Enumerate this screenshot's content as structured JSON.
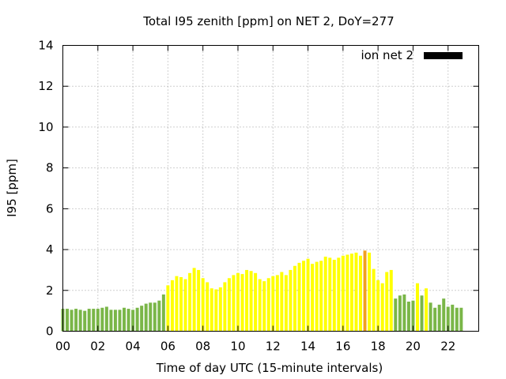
{
  "chart_data": {
    "type": "bar",
    "title": "Total I95 zenith [ppm] on NET 2, DoY=277",
    "xlabel": "Time of day UTC (15-minute intervals)",
    "ylabel": "I95 [ppm]",
    "ylim": [
      0,
      14
    ],
    "xlim": [
      0,
      23.75
    ],
    "yticks": [
      "0",
      "2",
      "4",
      "6",
      "8",
      "10",
      "12",
      "14"
    ],
    "xticks": [
      "00",
      "02",
      "04",
      "06",
      "08",
      "10",
      "12",
      "14",
      "16",
      "18",
      "20",
      "22"
    ],
    "grid": true,
    "legend": {
      "position": "top-right",
      "label": "ion net 2",
      "color": "#000000"
    },
    "bar_width_hours": 0.18,
    "colors": {
      "low": "#7ab648",
      "medium": "#ffff00",
      "high": "#f0a020"
    },
    "series": [
      {
        "x": [
          0,
          0.25,
          0.5,
          0.75,
          1,
          1.25,
          1.5,
          1.75,
          2,
          2.25,
          2.5,
          2.75,
          3,
          3.25,
          3.5,
          3.75,
          4,
          4.25,
          4.5,
          4.75,
          5,
          5.25,
          5.5,
          5.75,
          6,
          6.25,
          6.5,
          6.75,
          7,
          7.25,
          7.5,
          7.75,
          8,
          8.25,
          8.5,
          8.75,
          9,
          9.25,
          9.5,
          9.75,
          10,
          10.25,
          10.5,
          10.75,
          11,
          11.25,
          11.5,
          11.75,
          12,
          12.25,
          12.5,
          12.75,
          13,
          13.25,
          13.5,
          13.75,
          14,
          14.25,
          14.5,
          14.75,
          15,
          15.25,
          15.5,
          15.75,
          16,
          16.25,
          16.5,
          16.75,
          17,
          17.25,
          17.5,
          17.75,
          18,
          18.25,
          18.5,
          18.75,
          19,
          19.25,
          19.5,
          19.75,
          20,
          20.25,
          20.5,
          20.75,
          21,
          21.25,
          21.5,
          21.75,
          22,
          22.25,
          22.5,
          22.75
        ],
        "values": [
          1.1,
          1.1,
          1.05,
          1.1,
          1.05,
          1.0,
          1.1,
          1.1,
          1.1,
          1.15,
          1.2,
          1.05,
          1.05,
          1.05,
          1.15,
          1.1,
          1.05,
          1.15,
          1.25,
          1.35,
          1.4,
          1.4,
          1.5,
          1.8,
          2.25,
          2.5,
          2.7,
          2.65,
          2.55,
          2.85,
          3.1,
          3.0,
          2.6,
          2.4,
          2.1,
          2.05,
          2.15,
          2.4,
          2.6,
          2.75,
          2.85,
          2.8,
          3.0,
          2.95,
          2.85,
          2.55,
          2.45,
          2.6,
          2.7,
          2.75,
          2.9,
          2.75,
          3.0,
          3.2,
          3.35,
          3.45,
          3.55,
          3.3,
          3.4,
          3.45,
          3.65,
          3.6,
          3.5,
          3.6,
          3.7,
          3.75,
          3.8,
          3.85,
          3.7,
          3.95,
          3.85,
          3.05,
          2.5,
          2.35,
          2.9,
          3.0,
          1.6,
          1.75,
          1.8,
          1.45,
          1.5,
          2.35,
          1.75,
          2.1,
          1.4,
          1.15,
          1.3,
          1.6,
          1.2,
          1.3,
          1.15,
          1.15
        ],
        "levels": [
          "low",
          "low",
          "low",
          "low",
          "low",
          "low",
          "low",
          "low",
          "low",
          "low",
          "low",
          "low",
          "low",
          "low",
          "low",
          "low",
          "low",
          "low",
          "low",
          "low",
          "low",
          "low",
          "low",
          "low",
          "medium",
          "medium",
          "medium",
          "medium",
          "medium",
          "medium",
          "medium",
          "medium",
          "medium",
          "medium",
          "medium",
          "medium",
          "medium",
          "medium",
          "medium",
          "medium",
          "medium",
          "medium",
          "medium",
          "medium",
          "medium",
          "medium",
          "medium",
          "medium",
          "medium",
          "medium",
          "medium",
          "medium",
          "medium",
          "medium",
          "medium",
          "medium",
          "medium",
          "medium",
          "medium",
          "medium",
          "medium",
          "medium",
          "medium",
          "medium",
          "medium",
          "medium",
          "medium",
          "medium",
          "medium",
          "high",
          "medium",
          "medium",
          "medium",
          "medium",
          "medium",
          "medium",
          "low",
          "low",
          "low",
          "low",
          "low",
          "medium",
          "low",
          "medium",
          "low",
          "low",
          "low",
          "low",
          "low",
          "low",
          "low",
          "low"
        ]
      }
    ]
  }
}
